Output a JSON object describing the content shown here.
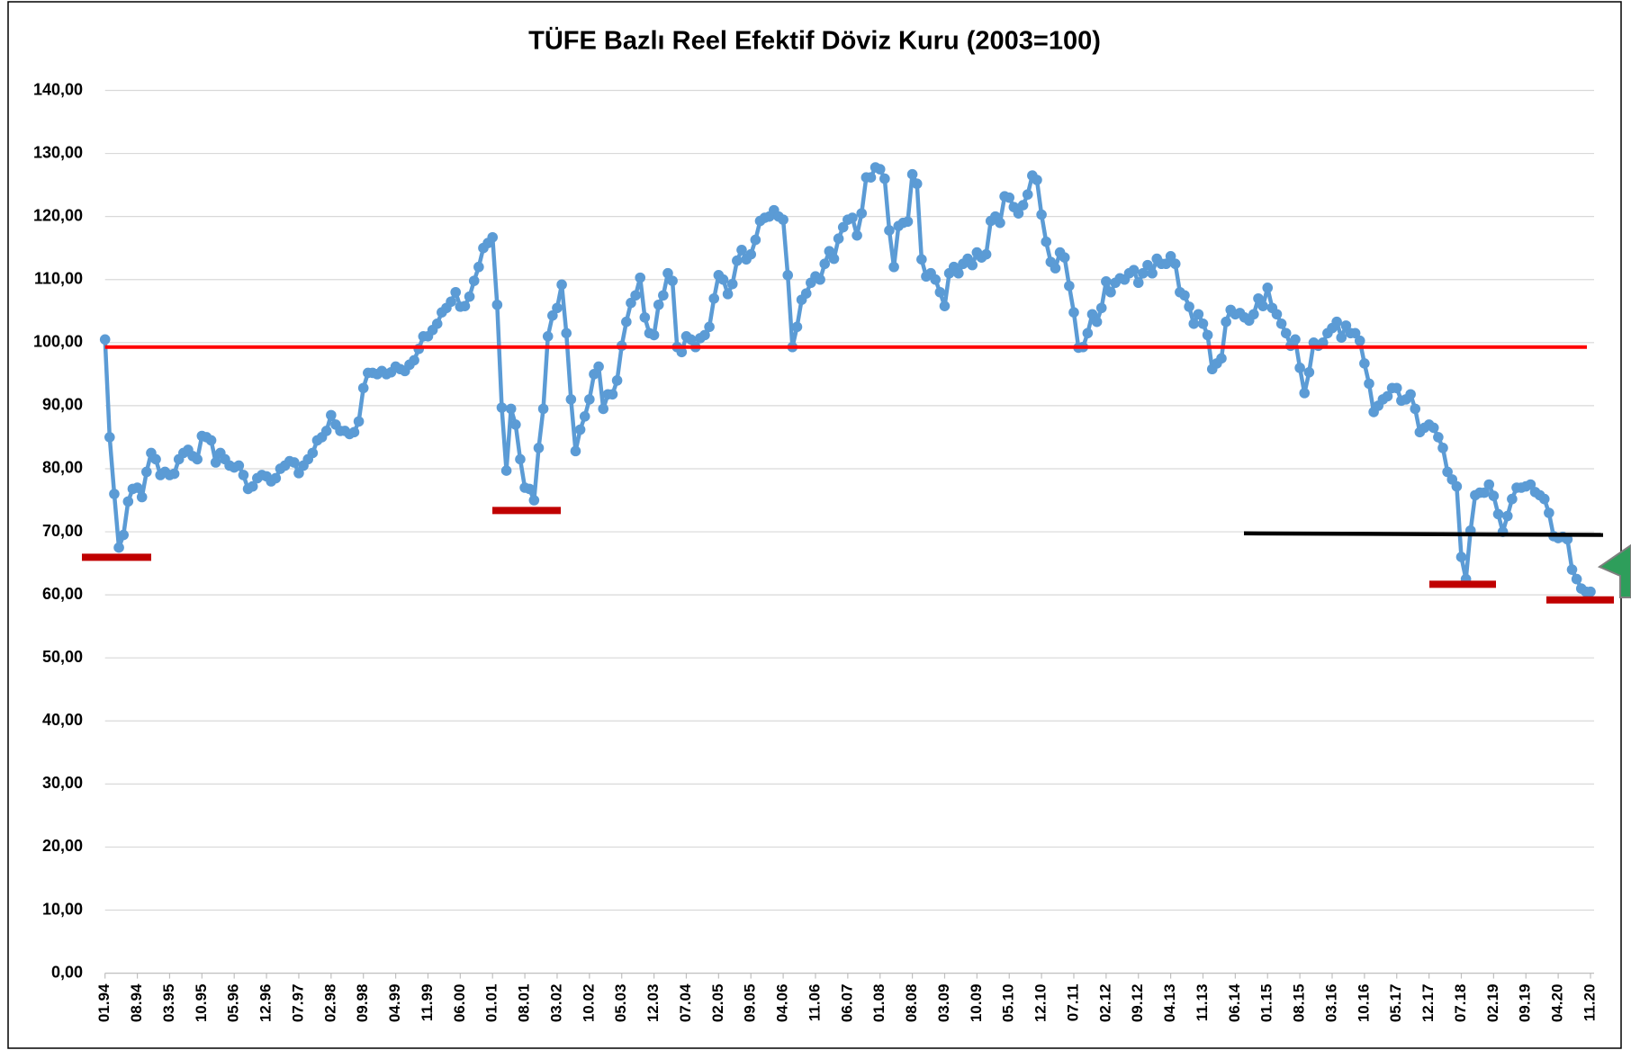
{
  "chart_data": {
    "type": "line",
    "title": "TÜFE  Bazlı Reel Efektif Döviz Kuru (2003=100)",
    "color": "#5b9bd5",
    "grid": true,
    "markers": true,
    "ylim": [
      0,
      140
    ],
    "yticks": [
      {
        "value": 0,
        "label": "0,00"
      },
      {
        "value": 10,
        "label": "10,00"
      },
      {
        "value": 20,
        "label": "20,00"
      },
      {
        "value": 30,
        "label": "30,00"
      },
      {
        "value": 40,
        "label": "40,00"
      },
      {
        "value": 50,
        "label": "50,00"
      },
      {
        "value": 60,
        "label": "60,00"
      },
      {
        "value": 70,
        "label": "70,00"
      },
      {
        "value": 80,
        "label": "80,00"
      },
      {
        "value": 90,
        "label": "90,00"
      },
      {
        "value": 100,
        "label": "100,00"
      },
      {
        "value": 110,
        "label": "110,00"
      },
      {
        "value": 120,
        "label": "120,00"
      },
      {
        "value": 130,
        "label": "130,00"
      },
      {
        "value": 140,
        "label": "140,00"
      }
    ],
    "categories": [
      "01.94",
      null,
      null,
      null,
      null,
      null,
      null,
      "08.94",
      null,
      null,
      null,
      null,
      null,
      null,
      "03.95",
      null,
      null,
      null,
      null,
      null,
      null,
      "10.95",
      null,
      null,
      null,
      null,
      null,
      null,
      "05.96",
      null,
      null,
      null,
      null,
      null,
      null,
      "12.96",
      null,
      null,
      null,
      null,
      null,
      null,
      "07.97",
      null,
      null,
      null,
      null,
      null,
      null,
      "02.98",
      null,
      null,
      null,
      null,
      null,
      null,
      "09.98",
      null,
      null,
      null,
      null,
      null,
      null,
      "04.99",
      null,
      null,
      null,
      null,
      null,
      null,
      "11.99",
      null,
      null,
      null,
      null,
      null,
      null,
      "06.00",
      null,
      null,
      null,
      null,
      null,
      null,
      "01.01",
      null,
      null,
      null,
      null,
      null,
      null,
      "08.01",
      null,
      null,
      null,
      null,
      null,
      null,
      "03.02",
      null,
      null,
      null,
      null,
      null,
      null,
      "10.02",
      null,
      null,
      null,
      null,
      null,
      null,
      "05.03",
      null,
      null,
      null,
      null,
      null,
      null,
      "12.03",
      null,
      null,
      null,
      null,
      null,
      null,
      "07.04",
      null,
      null,
      null,
      null,
      null,
      null,
      "02.05",
      null,
      null,
      null,
      null,
      null,
      null,
      "09.05",
      null,
      null,
      null,
      null,
      null,
      null,
      "04.06",
      null,
      null,
      null,
      null,
      null,
      null,
      "11.06",
      null,
      null,
      null,
      null,
      null,
      null,
      "06.07",
      null,
      null,
      null,
      null,
      null,
      null,
      "01.08",
      null,
      null,
      null,
      null,
      null,
      null,
      "08.08",
      null,
      null,
      null,
      null,
      null,
      null,
      "03.09",
      null,
      null,
      null,
      null,
      null,
      null,
      "10.09",
      null,
      null,
      null,
      null,
      null,
      null,
      "05.10",
      null,
      null,
      null,
      null,
      null,
      null,
      "12.10",
      null,
      null,
      null,
      null,
      null,
      null,
      "07.11",
      null,
      null,
      null,
      null,
      null,
      null,
      "02.12",
      null,
      null,
      null,
      null,
      null,
      null,
      "09.12",
      null,
      null,
      null,
      null,
      null,
      null,
      "04.13",
      null,
      null,
      null,
      null,
      null,
      null,
      "11.13",
      null,
      null,
      null,
      null,
      null,
      null,
      "06.14",
      null,
      null,
      null,
      null,
      null,
      null,
      "01.15",
      null,
      null,
      null,
      null,
      null,
      null,
      "08.15",
      null,
      null,
      null,
      null,
      null,
      null,
      "03.16",
      null,
      null,
      null,
      null,
      null,
      null,
      "10.16",
      null,
      null,
      null,
      null,
      null,
      null,
      "05.17",
      null,
      null,
      null,
      null,
      null,
      null,
      "12.17",
      null,
      null,
      null,
      null,
      null,
      null,
      "07.18",
      null,
      null,
      null,
      null,
      null,
      null,
      "02.19",
      null,
      null,
      null,
      null,
      null,
      null,
      "09.19",
      null,
      null,
      null,
      null,
      null,
      null,
      "04.20",
      null,
      null,
      null,
      null,
      null,
      null,
      "11.20"
    ],
    "values": [
      100.5,
      85,
      76,
      67.5,
      69.5,
      74.8,
      76.8,
      77,
      75.5,
      79.5,
      82.5,
      81.5,
      79,
      79.5,
      79,
      79.2,
      81.5,
      82.5,
      83,
      82,
      81.5,
      85.2,
      85,
      84.5,
      81,
      82.5,
      81.5,
      80.5,
      80.2,
      80.5,
      79,
      76.8,
      77.2,
      78.5,
      79,
      78.8,
      78,
      78.5,
      80,
      80.5,
      81.2,
      81,
      79.3,
      80.5,
      81.5,
      82.5,
      84.5,
      85,
      86,
      88.5,
      87,
      86,
      86,
      85.5,
      85.8,
      87.5,
      92.8,
      95.2,
      95.2,
      95,
      95.5,
      95,
      95.3,
      96.2,
      95.8,
      95.5,
      96.5,
      97.2,
      99,
      101,
      101,
      102,
      103,
      104.8,
      105.5,
      106.5,
      108,
      105.7,
      105.8,
      107.3,
      109.8,
      112,
      115,
      115.8,
      116.7,
      106,
      89.7,
      79.7,
      89.5,
      87,
      81.5,
      77,
      76.8,
      75,
      83.3,
      89.5,
      101,
      104.3,
      105.5,
      109.2,
      101.5,
      91,
      82.8,
      86.2,
      88.3,
      91,
      95,
      96.2,
      89.5,
      91.8,
      91.8,
      94,
      99.5,
      103.3,
      106.3,
      107.5,
      110.3,
      104,
      101.5,
      101.2,
      106,
      107.5,
      111,
      109.8,
      99.3,
      98.5,
      101,
      100.5,
      99.3,
      100.7,
      101.2,
      102.5,
      107,
      110.7,
      110,
      107.7,
      109.3,
      113,
      114.7,
      113.2,
      114,
      116.3,
      119.3,
      119.8,
      120,
      121,
      120,
      119.5,
      110.7,
      99.3,
      102.5,
      106.8,
      107.8,
      109.5,
      110.5,
      110,
      112.5,
      114.5,
      113.3,
      116.5,
      118.3,
      119.5,
      119.8,
      117,
      120.5,
      126.2,
      126.2,
      127.8,
      127.5,
      126,
      117.8,
      112,
      118.5,
      119,
      119.2,
      126.7,
      125.2,
      113.2,
      110.5,
      111,
      110,
      108,
      105.8,
      111,
      112,
      111,
      112.5,
      113.3,
      112.3,
      114.3,
      113.5,
      114,
      119.3,
      120,
      119,
      123.2,
      123,
      121.5,
      120.5,
      121.8,
      123.5,
      126.5,
      125.8,
      120.3,
      116,
      112.8,
      111.8,
      114.3,
      113.5,
      109,
      104.8,
      99.2,
      99.3,
      101.5,
      104.5,
      103.3,
      105.5,
      109.7,
      108,
      109.5,
      110.2,
      110,
      111,
      111.5,
      109.5,
      111,
      112.3,
      111,
      113.3,
      112.5,
      112.5,
      113.7,
      112.5,
      108,
      107.5,
      105.7,
      103,
      104.5,
      103,
      101.2,
      95.8,
      96.7,
      97.5,
      103.3,
      105.2,
      104.5,
      104.7,
      104,
      103.5,
      104.5,
      107,
      105.8,
      108.7,
      105.5,
      104.5,
      103,
      101.5,
      99.5,
      100.5,
      96,
      92,
      95.3,
      100,
      99.5,
      100,
      101.5,
      102.3,
      103.3,
      100.8,
      102.7,
      101.5,
      101.5,
      100.3,
      96.7,
      93.5,
      89,
      90,
      91,
      91.5,
      92.8,
      92.8,
      90.8,
      91,
      91.8,
      89.5,
      85.8,
      86.5,
      87,
      86.5,
      85,
      83.3,
      79.5,
      78.3,
      77.2,
      66,
      62.5,
      70.2,
      75.8,
      76.2,
      76.2,
      77.5,
      75.7,
      72.8,
      70,
      72.5,
      75.2,
      77,
      77,
      77.2,
      77.5,
      76.3,
      75.8,
      75.2,
      73,
      69.3,
      69,
      69.2,
      68.8,
      64,
      62.5,
      61,
      60.5,
      60.5
    ]
  }
}
